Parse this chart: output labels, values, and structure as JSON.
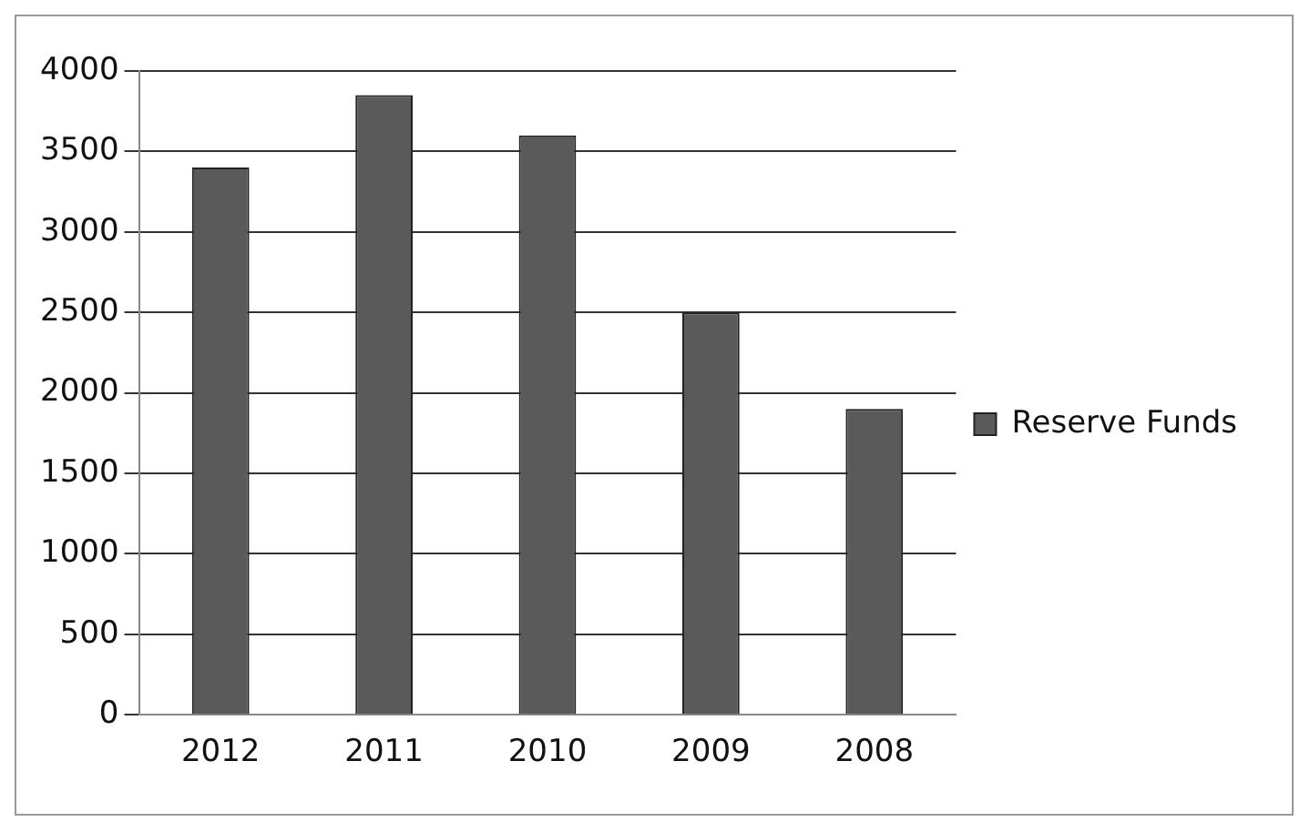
{
  "chart_data": {
    "type": "bar",
    "categories": [
      "2012",
      "2011",
      "2010",
      "2009",
      "2008"
    ],
    "series": [
      {
        "name": "Reserve Funds",
        "color": "#5a5a5a",
        "values": [
          3400,
          3850,
          3600,
          2500,
          1900
        ]
      }
    ],
    "ylim": [
      0,
      4000
    ],
    "yticks": [
      0,
      500,
      1000,
      1500,
      2000,
      2500,
      3000,
      3500,
      4000
    ],
    "grid": "y",
    "legend": "right"
  }
}
